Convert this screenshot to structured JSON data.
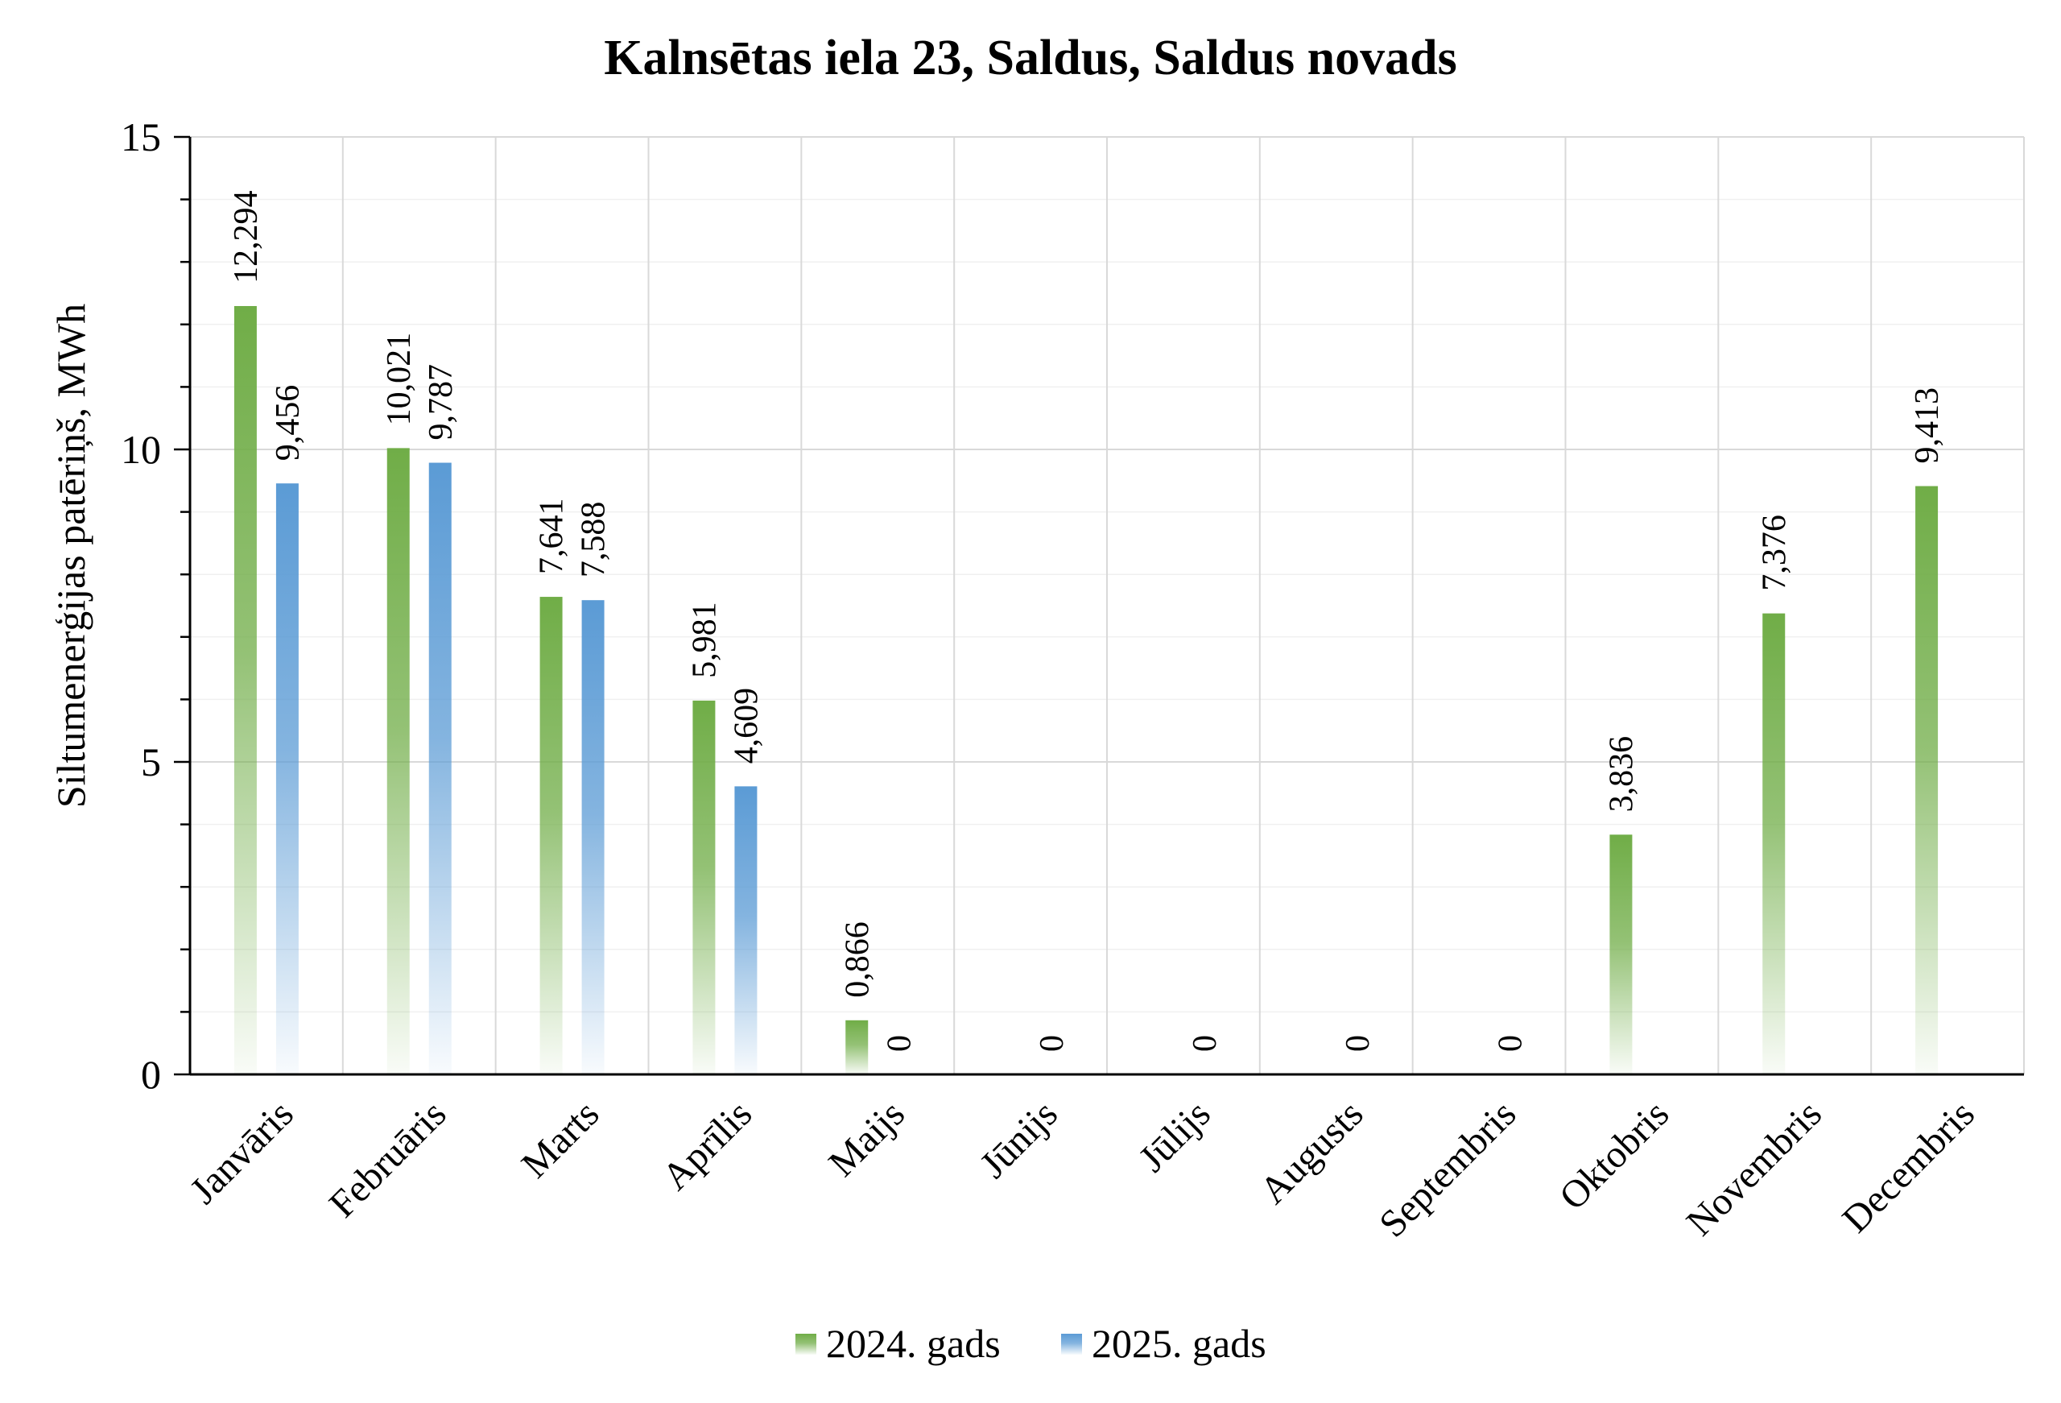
{
  "chart_data": {
    "type": "bar",
    "title": "Kalnsētas iela 23, Saldus, Saldus novads",
    "ylabel": "Siltumenerģijas patēriņš, MWh",
    "xlabel": "",
    "ylim": [
      0,
      15
    ],
    "yticks": [
      "0",
      "5",
      "10",
      "15"
    ],
    "categories": [
      "Janvāris",
      "Februāris",
      "Marts",
      "Aprīlis",
      "Maijs",
      "Jūnijs",
      "Jūlijs",
      "Augusts",
      "Septembris",
      "Oktobris",
      "Novembris",
      "Decembris"
    ],
    "series": [
      {
        "name": "2024. gads",
        "color": "#70ad47",
        "values": [
          12.294,
          10.021,
          7.641,
          5.981,
          0.866,
          null,
          null,
          null,
          null,
          3.836,
          7.376,
          9.413
        ],
        "labels": [
          "12,294",
          "10,021",
          "7,641",
          "5,981",
          "0,866",
          "",
          "",
          "",
          "",
          "3,836",
          "7,376",
          "9,413"
        ]
      },
      {
        "name": "2025. gads",
        "color": "#5b9bd5",
        "values": [
          9.456,
          9.787,
          7.588,
          4.609,
          0,
          0,
          0,
          0,
          0,
          null,
          null,
          null
        ],
        "labels": [
          "9,456",
          "9,787",
          "7,588",
          "4,609",
          "0",
          "0",
          "0",
          "0",
          "0",
          "",
          "",
          ""
        ]
      }
    ],
    "grid": true,
    "legend_position": "bottom"
  }
}
